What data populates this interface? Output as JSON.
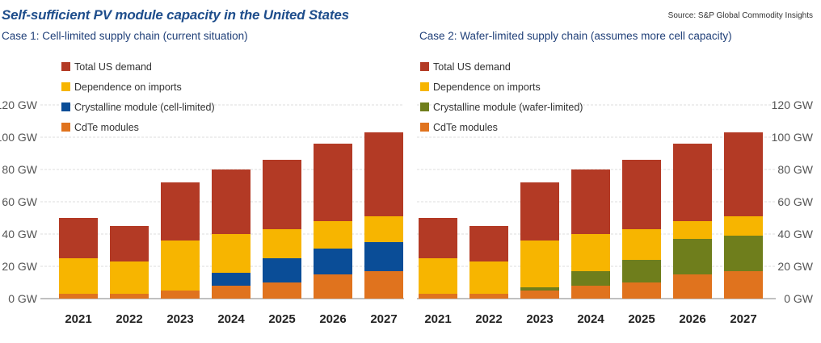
{
  "header": {
    "title": "Self-sufficient PV module capacity in the United States",
    "source": "Source: S&P Global Commodity Insights"
  },
  "chart_data": [
    {
      "type": "bar",
      "stacked": true,
      "title": "Case 1: Cell-limited supply chain (current situation)",
      "categories": [
        "2021",
        "2022",
        "2023",
        "2024",
        "2025",
        "2026",
        "2027"
      ],
      "yaxis": {
        "position": "left",
        "ticks": [
          "0 GW",
          "20 GW",
          "40 GW",
          "60 GW",
          "80 GW",
          "100 GW",
          "120 GW"
        ],
        "ylim": [
          0,
          120
        ]
      },
      "legend": [
        "Total US demand",
        "Dependence on imports",
        "Crystalline module (cell-limited)",
        "CdTe modules"
      ],
      "legend_position": "top-left",
      "grid": "horizontal",
      "series": [
        {
          "name": "CdTe modules",
          "color": "#e0731e",
          "values": [
            3,
            3,
            5,
            8,
            10,
            15,
            17
          ]
        },
        {
          "name": "Crystalline module (cell-limited)",
          "color": "#0a4d97",
          "values": [
            0,
            0,
            0,
            8,
            15,
            16,
            18
          ]
        },
        {
          "name": "Dependence on imports",
          "color": "#f7b500",
          "values": [
            22,
            20,
            31,
            24,
            18,
            17,
            16
          ]
        },
        {
          "name": "Total US demand",
          "color": "#b33a25",
          "values": [
            25,
            22,
            36,
            40,
            43,
            48,
            52
          ]
        }
      ]
    },
    {
      "type": "bar",
      "stacked": true,
      "title": "Case 2: Wafer-limited supply chain (assumes more cell capacity)",
      "categories": [
        "2021",
        "2022",
        "2023",
        "2024",
        "2025",
        "2026",
        "2027"
      ],
      "yaxis": {
        "position": "right",
        "ticks": [
          "0 GW",
          "20 GW",
          "40 GW",
          "60 GW",
          "80 GW",
          "100 GW",
          "120 GW"
        ],
        "ylim": [
          0,
          120
        ]
      },
      "legend": [
        "Total US demand",
        "Dependence on imports",
        "Crystalline module (wafer-limited)",
        "CdTe modules"
      ],
      "legend_position": "top-left",
      "grid": "horizontal",
      "series": [
        {
          "name": "CdTe modules",
          "color": "#e0731e",
          "values": [
            3,
            3,
            5,
            8,
            10,
            15,
            17
          ]
        },
        {
          "name": "Crystalline module (wafer-limited)",
          "color": "#6f7e1c",
          "values": [
            0,
            0,
            2,
            9,
            14,
            22,
            22
          ]
        },
        {
          "name": "Dependence on imports",
          "color": "#f7b500",
          "values": [
            22,
            20,
            29,
            23,
            19,
            11,
            12
          ]
        },
        {
          "name": "Total US demand",
          "color": "#b33a25",
          "values": [
            25,
            22,
            36,
            40,
            43,
            48,
            52
          ]
        }
      ]
    }
  ]
}
